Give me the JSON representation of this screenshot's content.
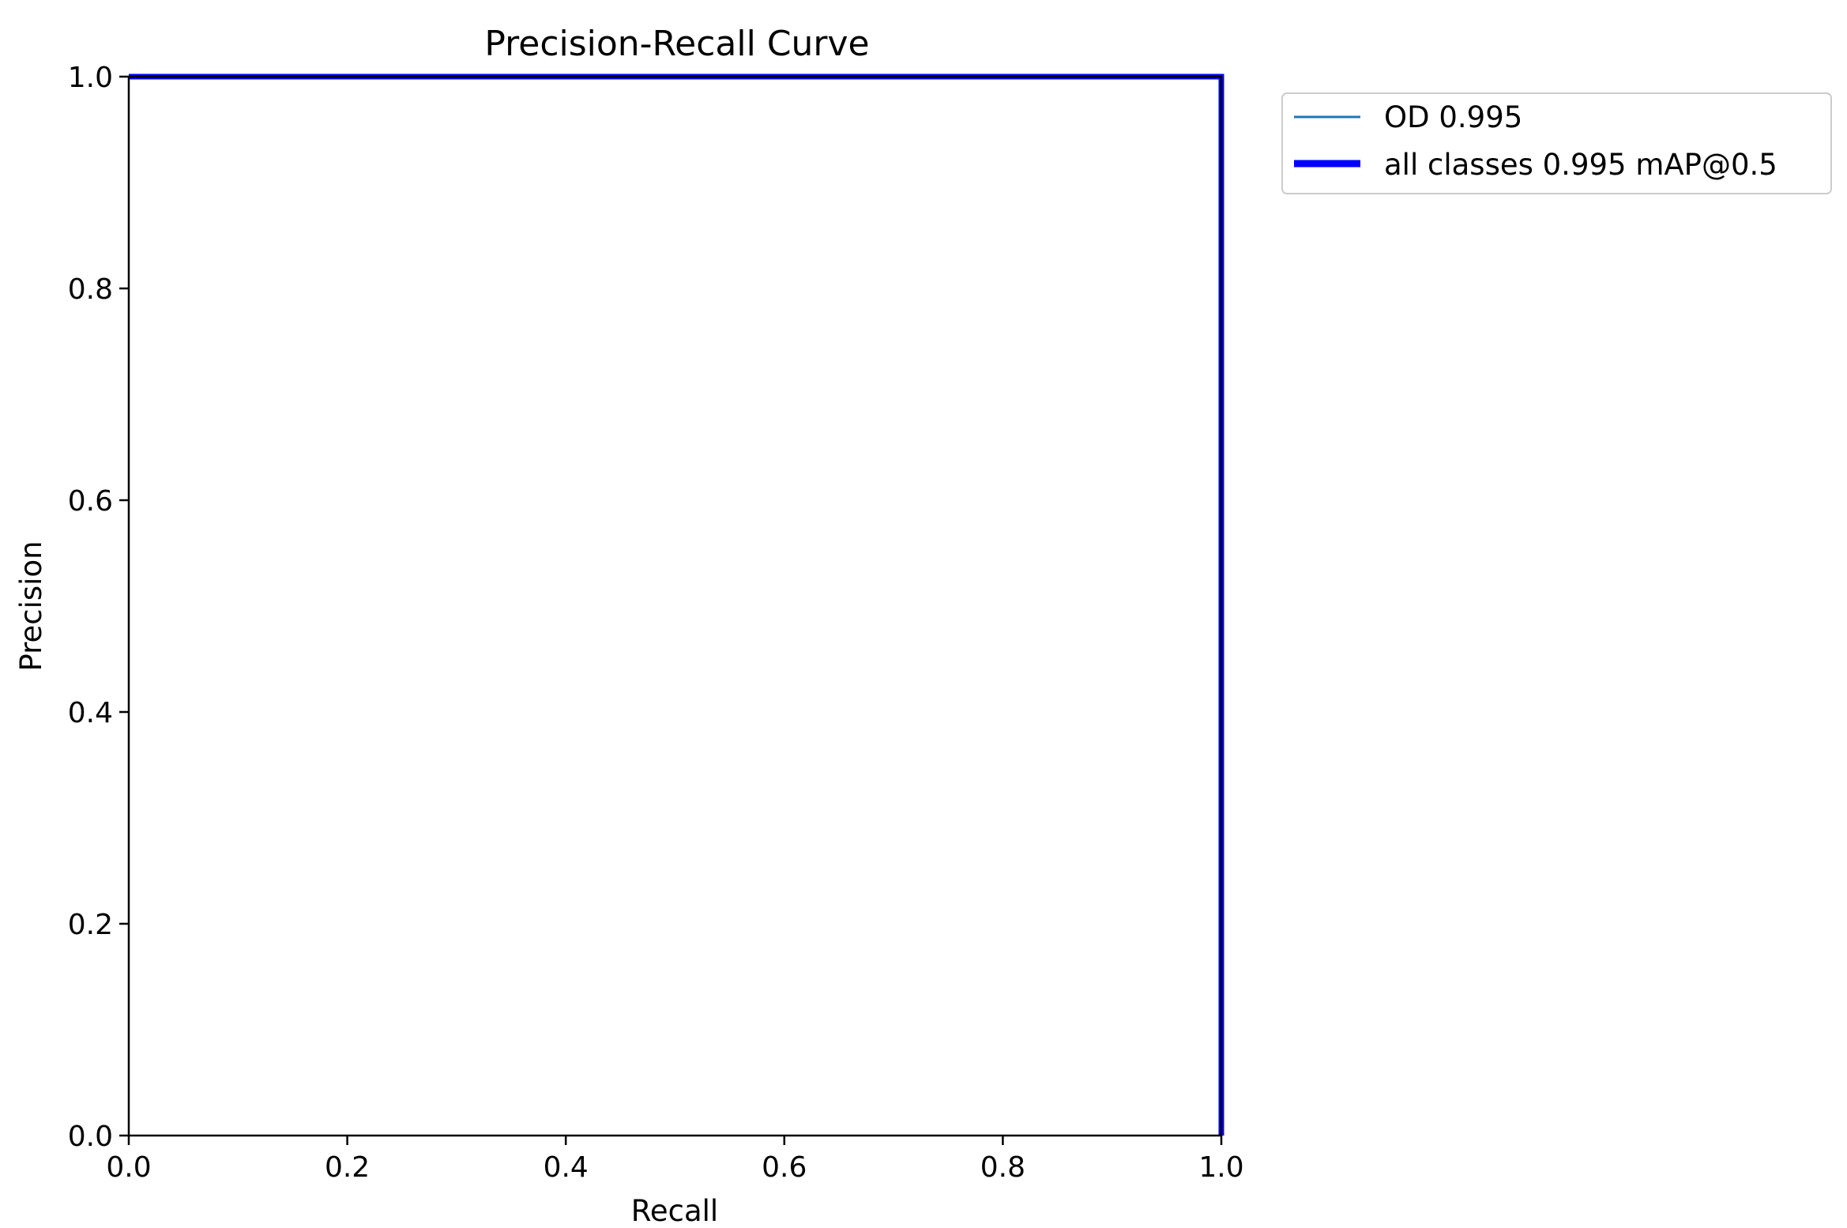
{
  "chart_data": {
    "type": "line",
    "title": "Precision-Recall Curve",
    "xlabel": "Recall",
    "ylabel": "Precision",
    "xlim": [
      0.0,
      1.0
    ],
    "ylim": [
      0.0,
      1.0
    ],
    "xticks": [
      "0.0",
      "0.2",
      "0.4",
      "0.6",
      "0.8",
      "1.0"
    ],
    "yticks": [
      "0.0",
      "0.2",
      "0.4",
      "0.6",
      "0.8",
      "1.0"
    ],
    "grid": false,
    "legend_position": "outside-top-right",
    "series": [
      {
        "name": "OD 0.995",
        "color": "#1f77b4",
        "x": [
          0.0,
          1.0,
          1.0
        ],
        "y": [
          1.0,
          1.0,
          0.0
        ]
      },
      {
        "name": "all classes 0.995 mAP@0.5",
        "color": "#0000ff",
        "x": [
          0.0,
          1.0,
          1.0
        ],
        "y": [
          1.0,
          1.0,
          0.0
        ]
      }
    ]
  }
}
